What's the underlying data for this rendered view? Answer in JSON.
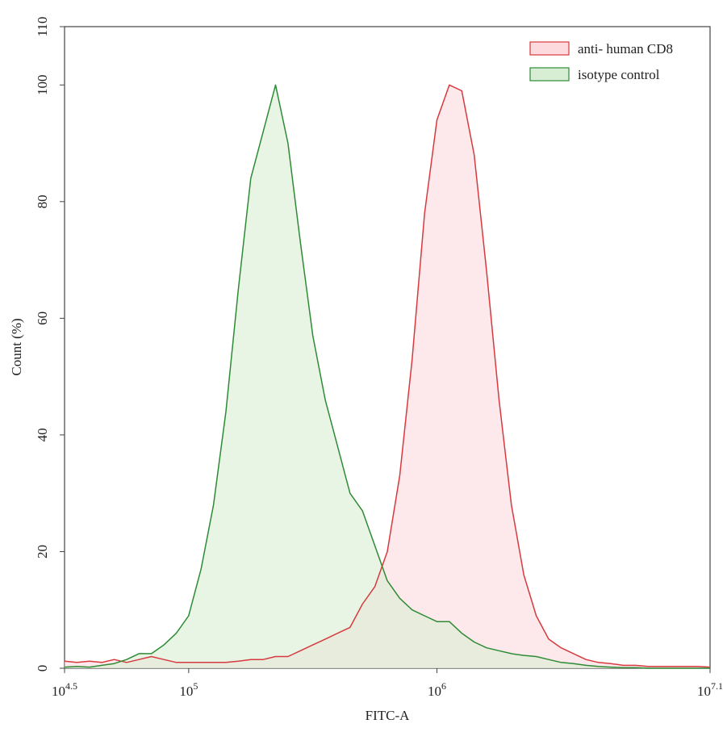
{
  "chart_data": {
    "type": "area",
    "xlabel": "FITC-A",
    "ylabel": "Count  (%)",
    "xscale": "log",
    "xlim": [
      31623,
      12589254
    ],
    "ylim": [
      0,
      110
    ],
    "xticks": [
      {
        "value": 31623,
        "label": "10^4.5"
      },
      {
        "value": 100000,
        "label": "10^5"
      },
      {
        "value": 1000000,
        "label": "10^6"
      },
      {
        "value": 12589254,
        "label": "10^7.1"
      }
    ],
    "yticks": [
      0,
      20,
      40,
      60,
      80,
      100,
      110
    ],
    "legend": "upper right",
    "x": [
      31623,
      35481,
      39811,
      44668,
      50119,
      56234,
      63096,
      70795,
      79433,
      89125,
      100000,
      112202,
      125893,
      141254,
      158489,
      177828,
      199526,
      223872,
      251189,
      281838,
      316228,
      354813,
      398107,
      446684,
      501187,
      562341,
      630957,
      707946,
      794328,
      891251,
      1000000,
      1122018,
      1258925,
      1412538,
      1584893,
      1778279,
      1995262,
      2238721,
      2511886,
      2818383,
      3162278,
      3548134,
      3981072,
      4466836,
      5011872,
      5623413,
      6309573,
      7079458,
      7943282,
      8912509,
      10000000,
      11220185,
      12589254
    ],
    "series": [
      {
        "name": "anti- human CD8",
        "color": "#d63a3e",
        "fill": "#fcdadd",
        "values": [
          1.2,
          1,
          1.2,
          1,
          1.5,
          1,
          1.5,
          2,
          1.5,
          1,
          1,
          1,
          1,
          1,
          1.2,
          1.5,
          1.5,
          2,
          2,
          3,
          4,
          5,
          6,
          7,
          11,
          14,
          20,
          33,
          53,
          78,
          94,
          100,
          99,
          88,
          68,
          46,
          28,
          16,
          9,
          5,
          3.5,
          2.5,
          1.5,
          1,
          0.8,
          0.5,
          0.5,
          0.3,
          0.3,
          0.3,
          0.3,
          0.3,
          0.2
        ]
      },
      {
        "name": "isotype control",
        "color": "#2e8b35",
        "fill": "#d8eed4",
        "values": [
          0.2,
          0.3,
          0.2,
          0.5,
          0.8,
          1.5,
          2.5,
          2.5,
          4,
          6,
          9,
          17,
          28,
          44,
          65,
          84,
          92,
          100,
          90,
          73,
          57,
          46,
          38,
          30,
          27,
          21,
          15,
          12,
          10,
          9,
          8,
          8,
          6,
          4.5,
          3.5,
          3,
          2.5,
          2.2,
          2,
          1.5,
          1,
          0.8,
          0.5,
          0.3,
          0.2,
          0.1,
          0.1,
          0,
          0,
          0,
          0,
          0,
          0
        ]
      }
    ]
  }
}
